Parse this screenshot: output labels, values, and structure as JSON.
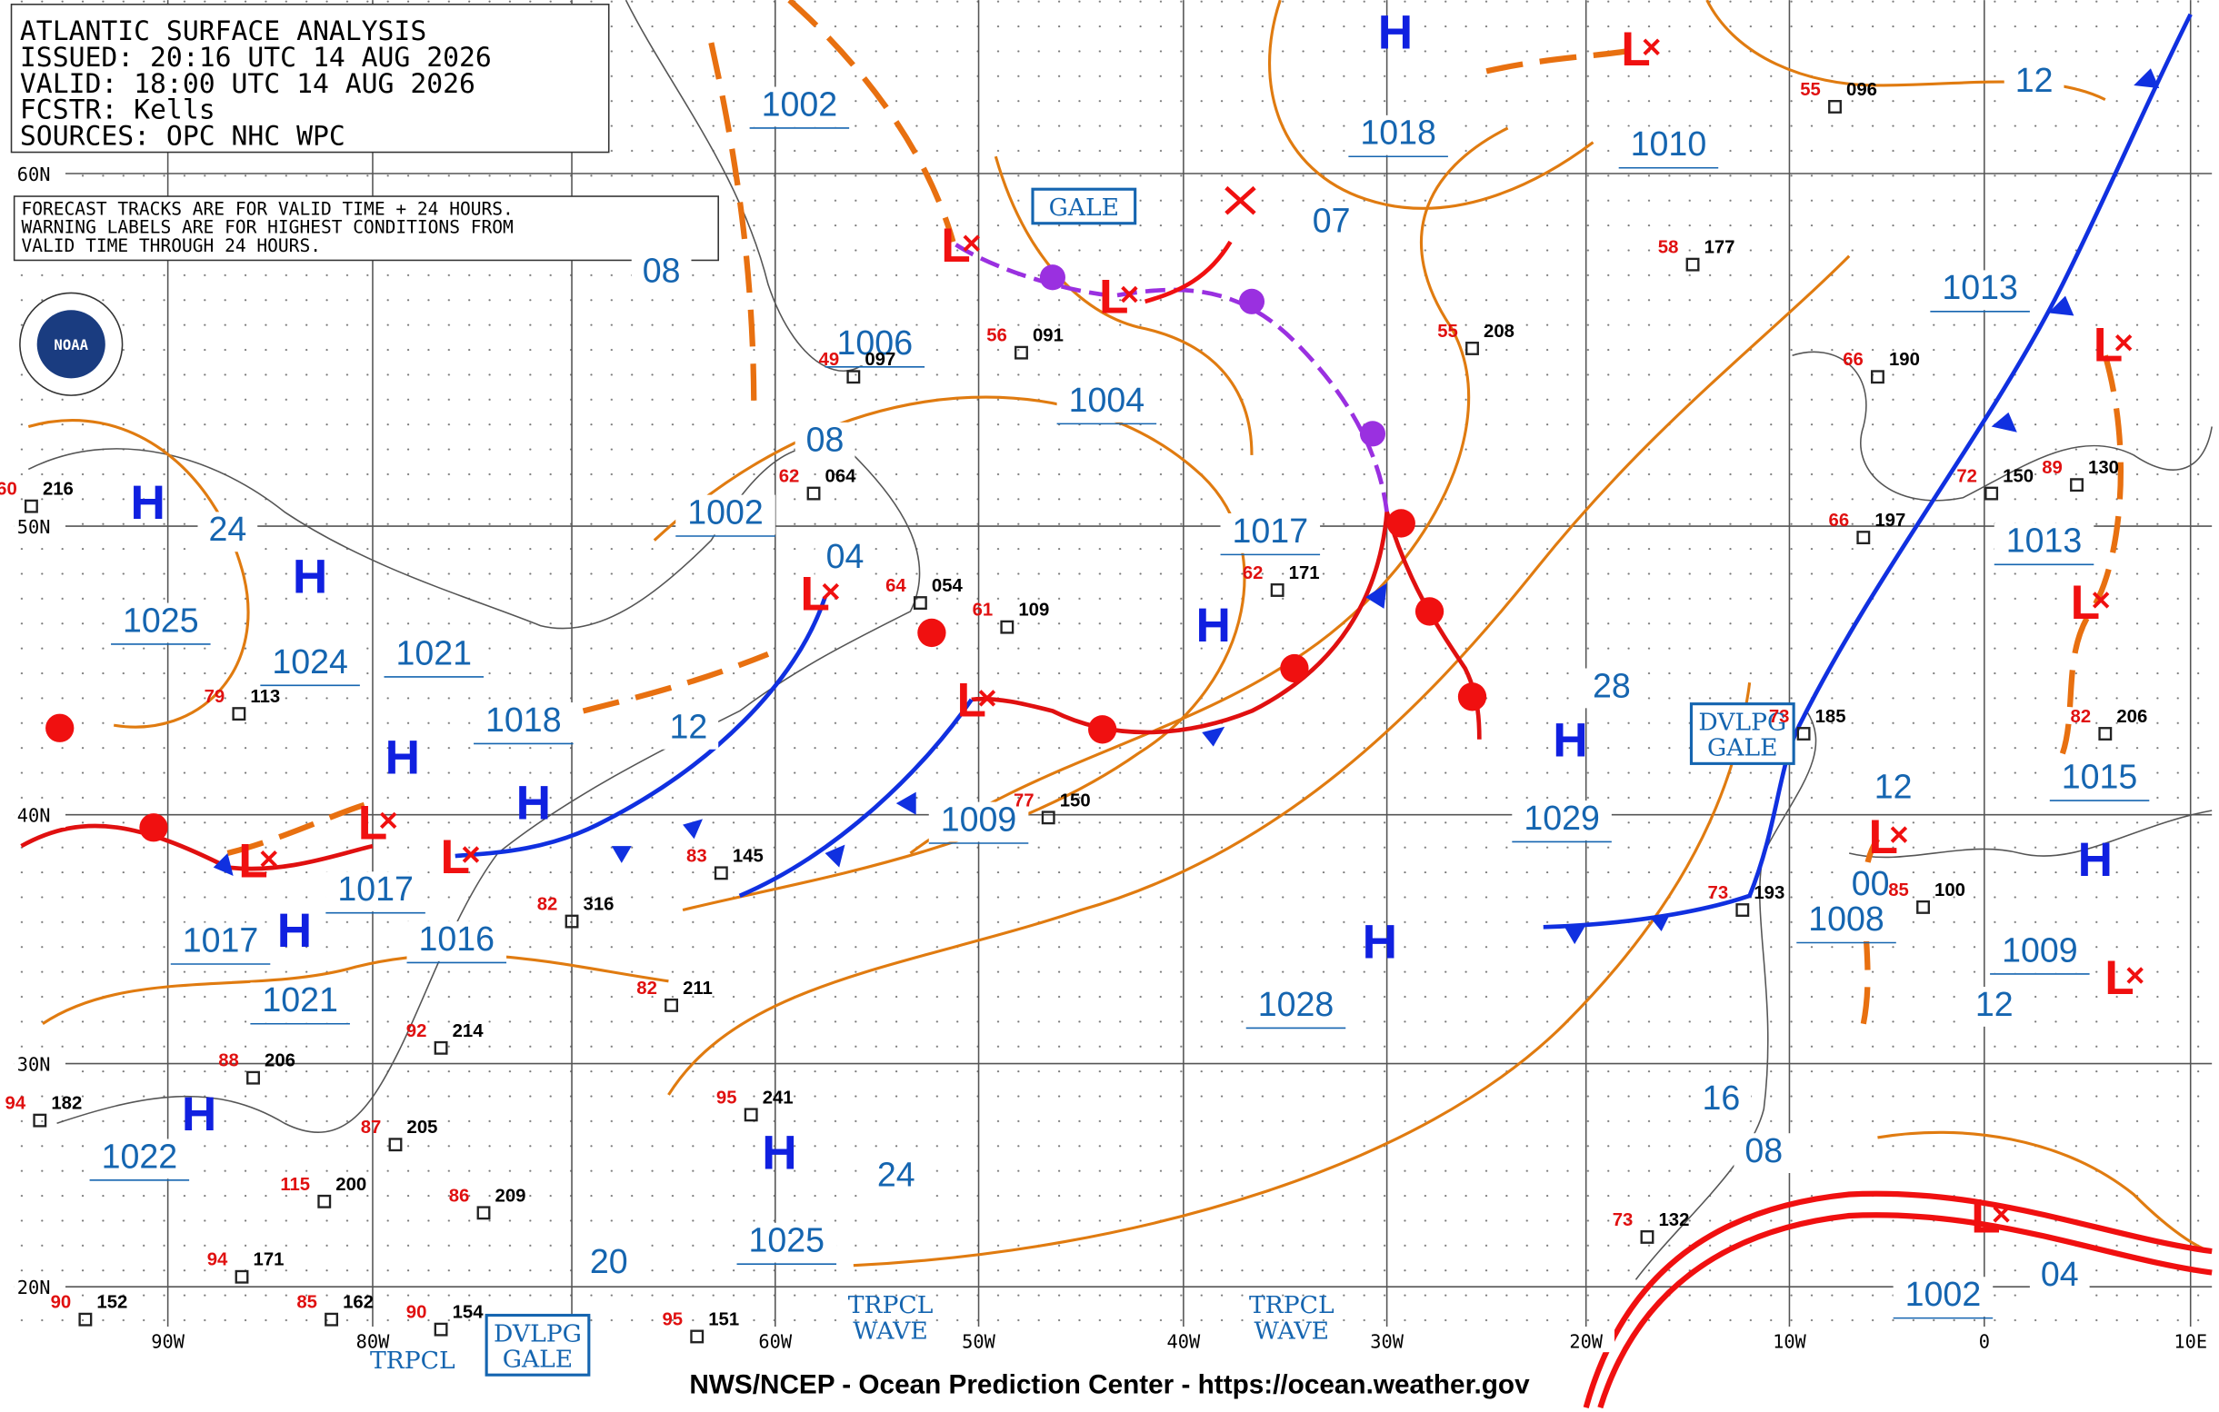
{
  "header": {
    "lines": [
      "ATLANTIC SURFACE ANALYSIS",
      "ISSUED: 20:16 UTC 14 AUG 2026",
      "VALID:  18:00 UTC 14 AUG 2026",
      "FCSTR:  Kells",
      "SOURCES: OPC NHC WPC"
    ]
  },
  "note": [
    "FORECAST TRACKS ARE FOR VALID TIME + 24 HOURS.",
    "WARNING LABELS ARE FOR HIGHEST CONDITIONS FROM",
    "VALID TIME THROUGH 24 HOURS."
  ],
  "logo": "NOAA",
  "footer": "NWS/NCEP - Ocean Prediction Center - https://ocean.weather.gov",
  "lat_labels": [
    "60N",
    "50N",
    "40N",
    "30N",
    "20N"
  ],
  "lon_labels": [
    "90W",
    "80W",
    "60W",
    "50W",
    "40W",
    "30W",
    "20W",
    "10W",
    "0",
    "10E"
  ],
  "isobar_labels": [
    "1002",
    "1018",
    "1010",
    "07",
    "08",
    "1006",
    "1004",
    "08",
    "1002",
    "04",
    "1017",
    "1013",
    "1013",
    "12",
    "24",
    "1025",
    "1024",
    "1021",
    "1018",
    "12",
    "28",
    "1029",
    "1009",
    "1015",
    "12",
    "1017",
    "1016",
    "1017",
    "1008",
    "00",
    "1009",
    "12",
    "1021",
    "1028",
    "16",
    "08",
    "24",
    "1022",
    "1025",
    "20",
    "1002",
    "04"
  ],
  "centers": [
    "H",
    "H",
    "H",
    "H",
    "H",
    "H",
    "H",
    "H",
    "H",
    "H",
    "H",
    "H",
    "L",
    "L",
    "L",
    "L",
    "L",
    "L",
    "L",
    "L",
    "L",
    "L",
    "L",
    "L",
    "L"
  ],
  "warnings": [
    "GALE",
    "DVLPG GALE",
    "DVLPG GALE",
    "TRPCL WAVE",
    "TRPCL WAVE",
    "TRPCL"
  ],
  "stations": [
    {
      "p": "096",
      "t": "55"
    },
    {
      "p": "177",
      "t": "58"
    },
    {
      "p": "208",
      "t": "55"
    },
    {
      "p": "091",
      "t": "56"
    },
    {
      "p": "097",
      "t": "49"
    },
    {
      "p": "064",
      "t": "62"
    },
    {
      "p": "054",
      "t": "64"
    },
    {
      "p": "109",
      "t": "61"
    },
    {
      "p": "171",
      "t": "62"
    },
    {
      "p": "190",
      "t": "66"
    },
    {
      "p": "197",
      "t": "66"
    },
    {
      "p": "150",
      "t": "72"
    },
    {
      "p": "130",
      "t": "89"
    },
    {
      "p": "206",
      "t": "82"
    },
    {
      "p": "185",
      "t": "73"
    },
    {
      "p": "150",
      "t": "77"
    },
    {
      "p": "145",
      "t": "83"
    },
    {
      "p": "316",
      "t": "82"
    },
    {
      "p": "211",
      "t": "82"
    },
    {
      "p": "214",
      "t": "92"
    },
    {
      "p": "206",
      "t": "88"
    },
    {
      "p": "205",
      "t": "87"
    },
    {
      "p": "209",
      "t": "86"
    },
    {
      "p": "200",
      "t": "115"
    },
    {
      "p": "171",
      "t": "94"
    },
    {
      "p": "162",
      "t": "85"
    },
    {
      "p": "154",
      "t": "90"
    },
    {
      "p": "152",
      "t": "90"
    },
    {
      "p": "241",
      "t": "95"
    },
    {
      "p": "182",
      "t": "94"
    },
    {
      "p": "216",
      "t": "60"
    },
    {
      "p": "113",
      "t": "79"
    },
    {
      "p": "100",
      "t": "85"
    },
    {
      "p": "193",
      "t": "73"
    },
    {
      "p": "132",
      "t": "73"
    },
    {
      "p": "151",
      "t": "95"
    }
  ]
}
